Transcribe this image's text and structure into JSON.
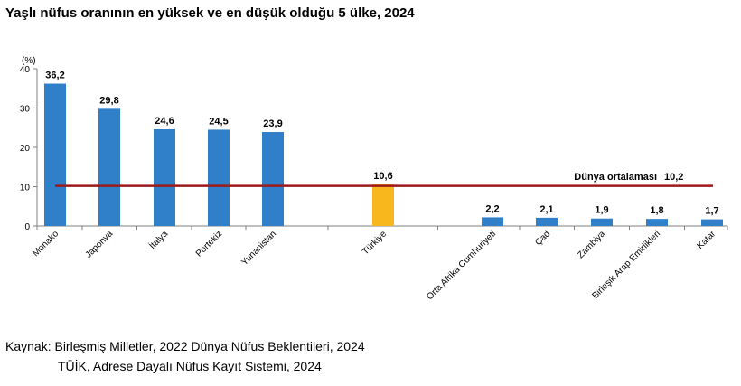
{
  "chart_data": {
    "type": "bar",
    "title": "Yaşlı nüfus oranının en yüksek ve en düşük olduğu 5 ülke, 2024",
    "ylabel": "(%)",
    "xlabel": "",
    "ylim": [
      0,
      40
    ],
    "yticks": [
      "0",
      "10",
      "20",
      "30",
      "40"
    ],
    "categories": [
      "Monako",
      "Japonya",
      "İtalya",
      "Portekiz",
      "Yunanistan",
      "Türkiye",
      "Orta Afrika Cumhuriyeti",
      "Çad",
      "Zambiya",
      "Birleşik Arap Emirlikleri",
      "Katar"
    ],
    "values": [
      36.2,
      29.8,
      24.6,
      24.5,
      23.9,
      10.6,
      2.2,
      2.1,
      1.9,
      1.8,
      1.7
    ],
    "value_labels": [
      "36,2",
      "29,8",
      "24,6",
      "24,5",
      "23,9",
      "10,6",
      "2,2",
      "2,1",
      "1,9",
      "1,8",
      "1,7"
    ],
    "highlight": "Türkiye",
    "reference_line": {
      "label": "Dünya ortalaması",
      "value": 10.2,
      "value_label": "10,2"
    },
    "colors": {
      "bar": "#2f7fc9",
      "highlight": "#f8b71c",
      "reference_line": "#9b1b1b",
      "axis": "#808080"
    }
  },
  "source": {
    "line1": "Kaynak: Birleşmiş Milletler, 2022 Dünya Nüfus Beklentileri, 2024",
    "line2": "TÜİK, Adrese Dayalı Nüfus Kayıt Sistemi, 2024"
  }
}
